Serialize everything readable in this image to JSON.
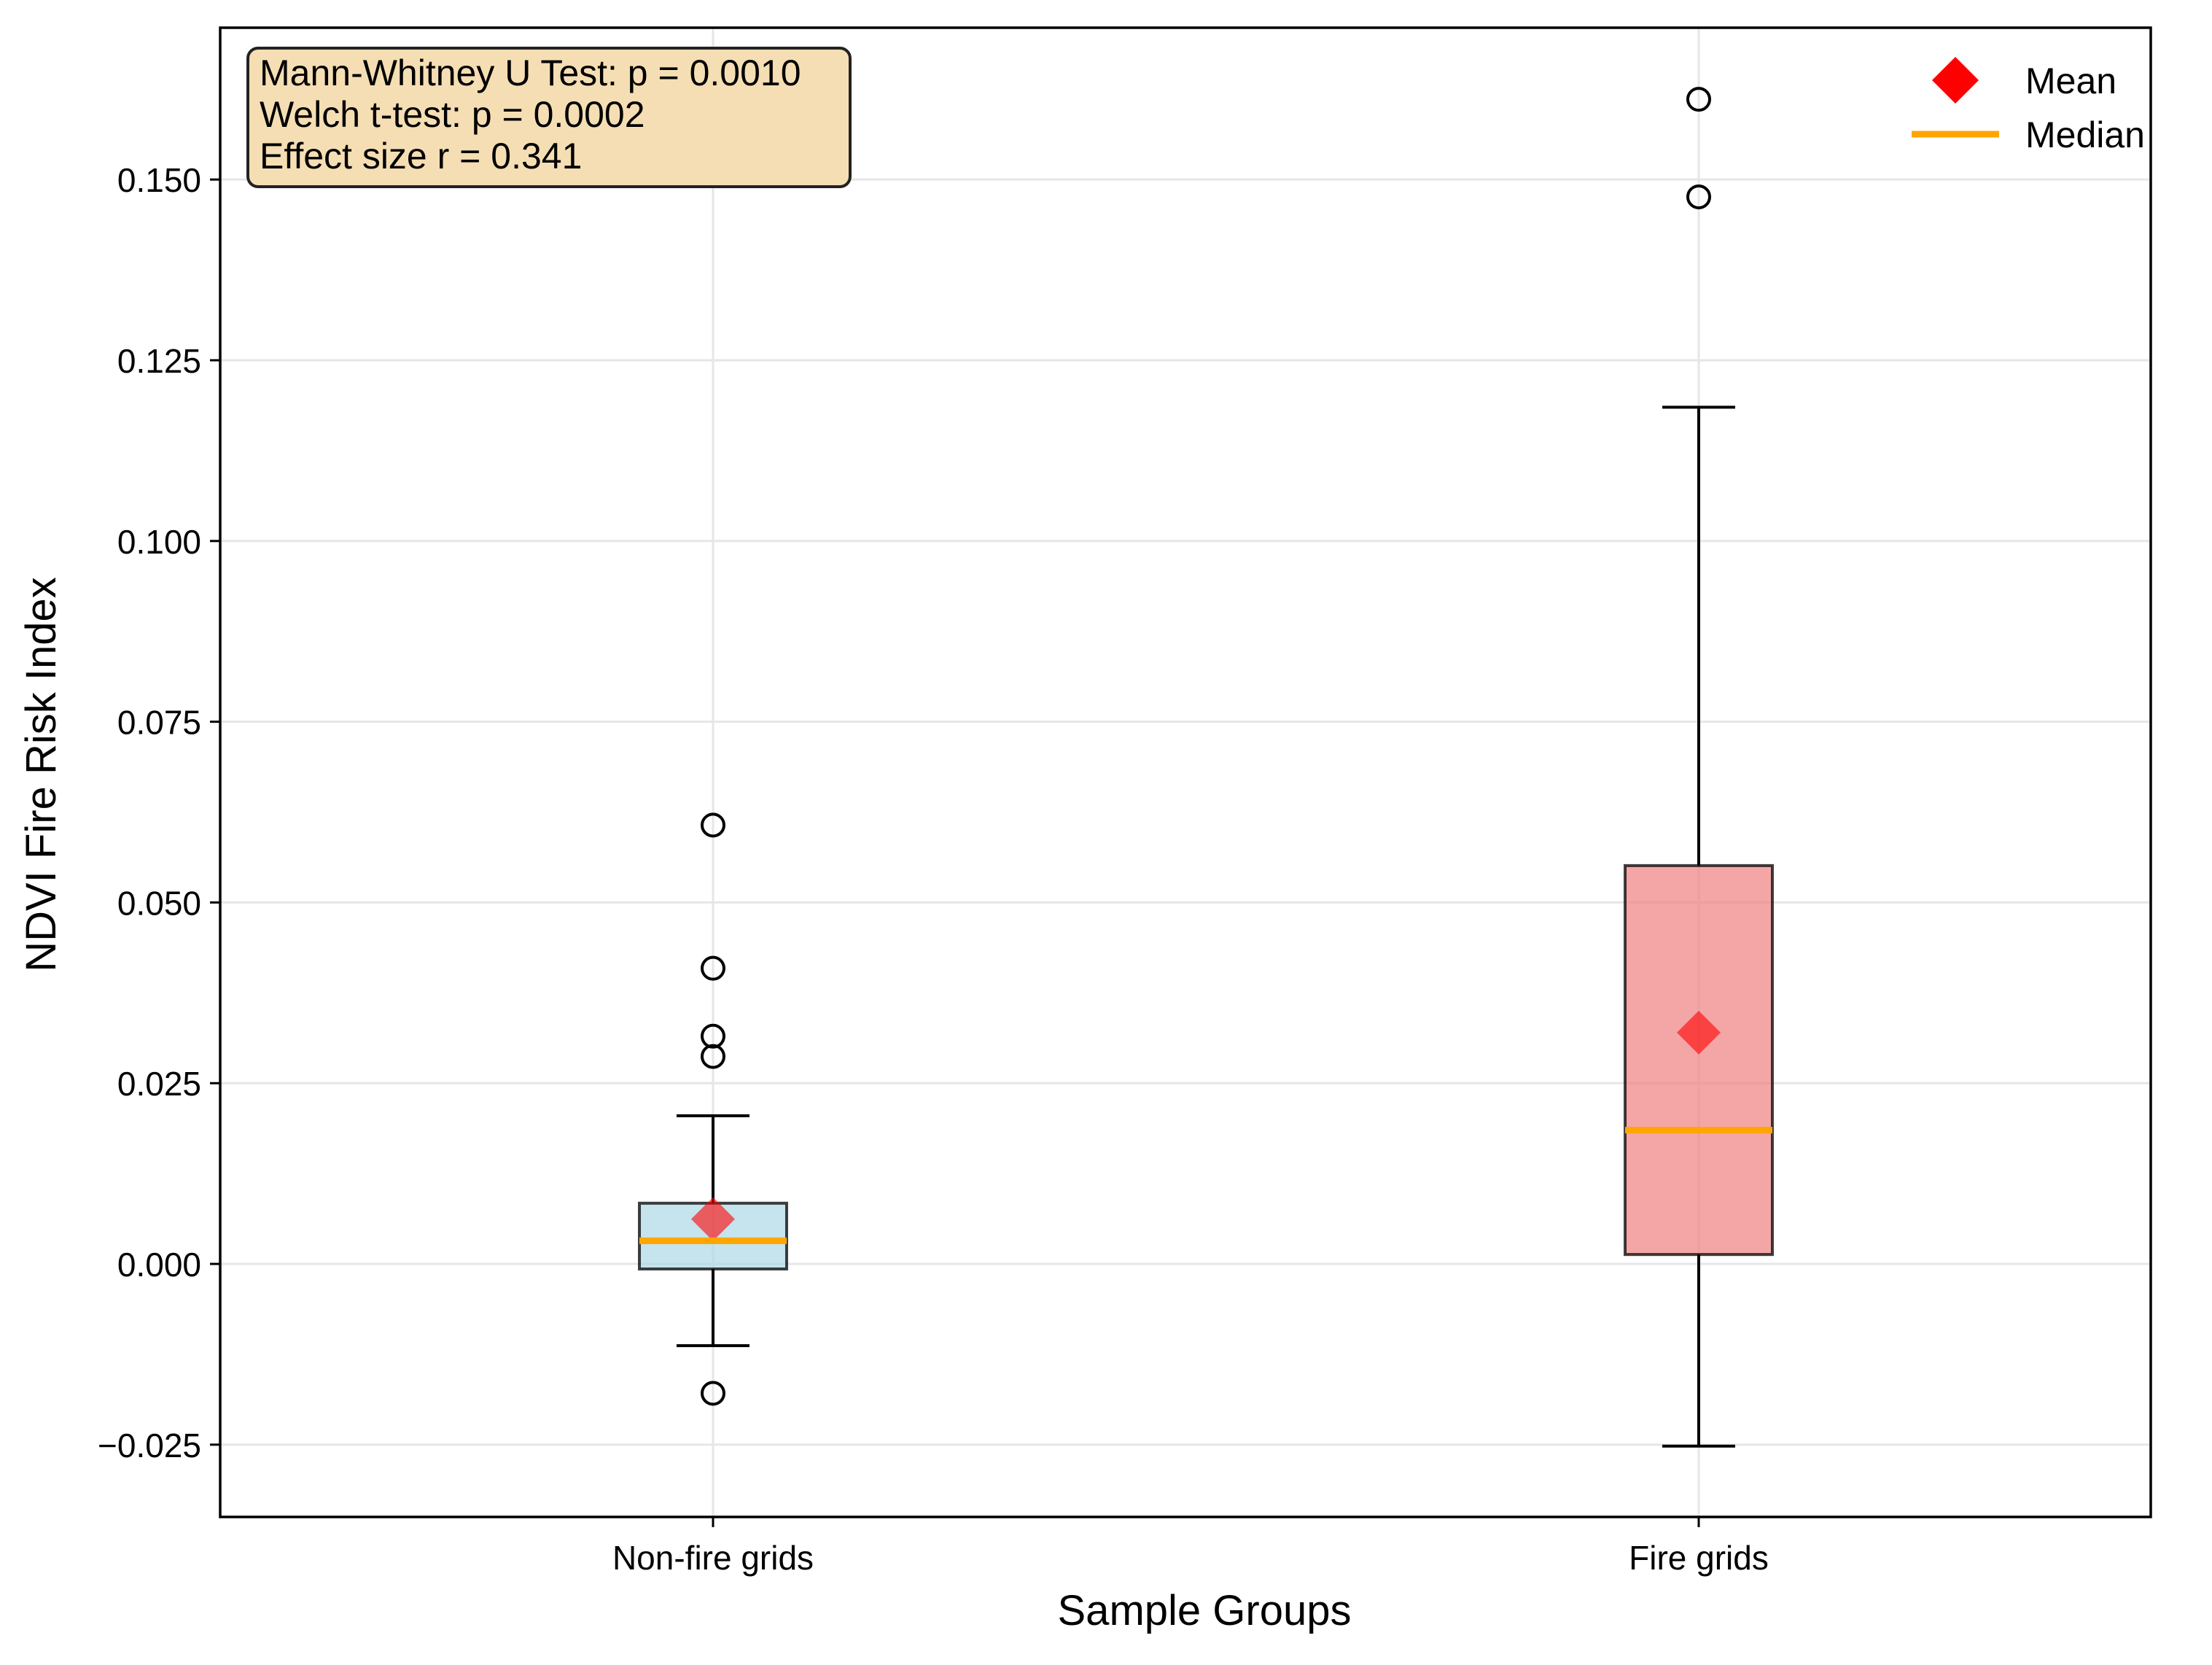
{
  "chart_data": {
    "type": "box",
    "title": "",
    "xlabel": "Sample Groups",
    "ylabel": "NDVI Fire Risk Index",
    "ylim": [
      -0.035,
      0.171
    ],
    "yticks": [
      -0.025,
      0.0,
      0.025,
      0.05,
      0.075,
      0.1,
      0.125,
      0.15
    ],
    "ytick_labels": [
      "−0.025",
      "0.000",
      "0.025",
      "0.050",
      "0.075",
      "0.100",
      "0.125",
      "0.150"
    ],
    "grid": true,
    "groups": [
      {
        "label": "Non-fire grids",
        "whisker_low": -0.0113,
        "q1": -0.0007,
        "median": 0.0032,
        "q3": 0.0084,
        "whisker_high": 0.0205,
        "mean": 0.0062,
        "outliers": [
          0.0607,
          0.0409,
          0.0315,
          0.0287,
          -0.0179
        ],
        "color": "#add8e6"
      },
      {
        "label": "Fire grids",
        "whisker_low": -0.0252,
        "q1": 0.0013,
        "median": 0.0185,
        "q3": 0.0551,
        "whisker_high": 0.1185,
        "mean": 0.032,
        "outliers": [
          0.1611,
          0.1476
        ],
        "color": "#f08080"
      }
    ],
    "legend": {
      "placement": "top-right",
      "entries": [
        {
          "label": "Mean",
          "marker": "diamond",
          "color": "#ff0000"
        },
        {
          "label": "Median",
          "marker": "line",
          "color": "#ffa500"
        }
      ]
    },
    "annotation": {
      "placement": "top-left",
      "lines": [
        "Mann-Whitney U Test: p = 0.0010",
        "Welch t-test: p = 0.0002",
        "Effect size r = 0.341"
      ],
      "background": "#f5deb3"
    },
    "colors": {
      "median": "#ffa500",
      "mean": "#ff0000",
      "grid": "#e6e6e6"
    }
  }
}
